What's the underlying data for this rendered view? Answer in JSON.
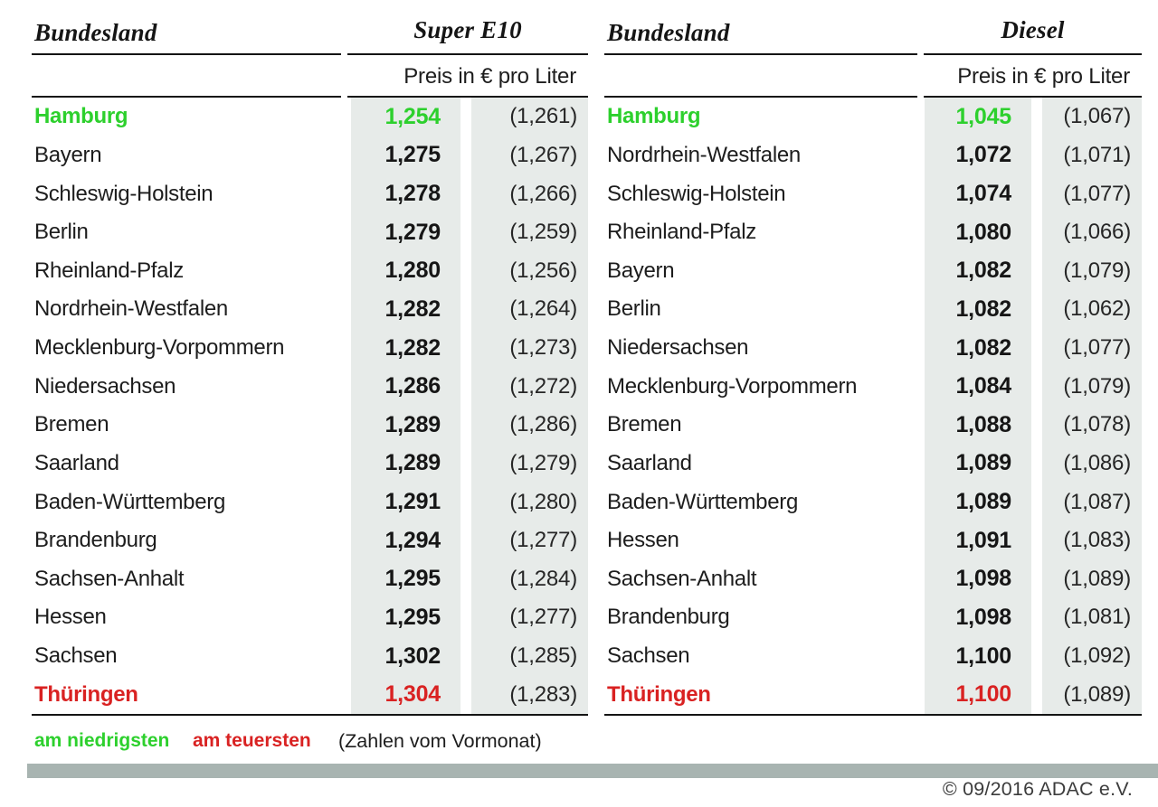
{
  "chart_data": [
    {
      "type": "table",
      "title": "Super E10",
      "header": {
        "state_label": "Bundesland",
        "fuel_label": "Super E10",
        "price_unit_label": "Preis in € pro Liter"
      },
      "columns": [
        "Bundesland",
        "Preis in € pro Liter",
        "Vormonat"
      ],
      "rows": [
        {
          "state": "Hamburg",
          "price": "1,254",
          "prev": "(1,261)",
          "highlight": "lowest"
        },
        {
          "state": "Bayern",
          "price": "1,275",
          "prev": "(1,267)",
          "highlight": ""
        },
        {
          "state": "Schleswig-Holstein",
          "price": "1,278",
          "prev": "(1,266)",
          "highlight": ""
        },
        {
          "state": "Berlin",
          "price": "1,279",
          "prev": "(1,259)",
          "highlight": ""
        },
        {
          "state": "Rheinland-Pfalz",
          "price": "1,280",
          "prev": "(1,256)",
          "highlight": ""
        },
        {
          "state": "Nordrhein-Westfalen",
          "price": "1,282",
          "prev": "(1,264)",
          "highlight": ""
        },
        {
          "state": "Mecklenburg-Vorpommern",
          "price": "1,282",
          "prev": "(1,273)",
          "highlight": ""
        },
        {
          "state": "Niedersachsen",
          "price": "1,286",
          "prev": "(1,272)",
          "highlight": ""
        },
        {
          "state": "Bremen",
          "price": "1,289",
          "prev": "(1,286)",
          "highlight": ""
        },
        {
          "state": "Saarland",
          "price": "1,289",
          "prev": "(1,279)",
          "highlight": ""
        },
        {
          "state": "Baden-Württemberg",
          "price": "1,291",
          "prev": "(1,280)",
          "highlight": ""
        },
        {
          "state": "Brandenburg",
          "price": "1,294",
          "prev": "(1,277)",
          "highlight": ""
        },
        {
          "state": "Sachsen-Anhalt",
          "price": "1,295",
          "prev": "(1,284)",
          "highlight": ""
        },
        {
          "state": "Hessen",
          "price": "1,295",
          "prev": "(1,277)",
          "highlight": ""
        },
        {
          "state": "Sachsen",
          "price": "1,302",
          "prev": "(1,285)",
          "highlight": ""
        },
        {
          "state": "Thüringen",
          "price": "1,304",
          "prev": "(1,283)",
          "highlight": "highest"
        }
      ]
    },
    {
      "type": "table",
      "title": "Diesel",
      "header": {
        "state_label": "Bundesland",
        "fuel_label": "Diesel",
        "price_unit_label": "Preis in € pro Liter"
      },
      "columns": [
        "Bundesland",
        "Preis in € pro Liter",
        "Vormonat"
      ],
      "rows": [
        {
          "state": "Hamburg",
          "price": "1,045",
          "prev": "(1,067)",
          "highlight": "lowest"
        },
        {
          "state": "Nordrhein-Westfalen",
          "price": "1,072",
          "prev": "(1,071)",
          "highlight": ""
        },
        {
          "state": "Schleswig-Holstein",
          "price": "1,074",
          "prev": "(1,077)",
          "highlight": ""
        },
        {
          "state": "Rheinland-Pfalz",
          "price": "1,080",
          "prev": "(1,066)",
          "highlight": ""
        },
        {
          "state": "Bayern",
          "price": "1,082",
          "prev": "(1,079)",
          "highlight": ""
        },
        {
          "state": "Berlin",
          "price": "1,082",
          "prev": "(1,062)",
          "highlight": ""
        },
        {
          "state": "Niedersachsen",
          "price": "1,082",
          "prev": "(1,077)",
          "highlight": ""
        },
        {
          "state": "Mecklenburg-Vorpommern",
          "price": "1,084",
          "prev": "(1,079)",
          "highlight": ""
        },
        {
          "state": "Bremen",
          "price": "1,088",
          "prev": "(1,078)",
          "highlight": ""
        },
        {
          "state": "Saarland",
          "price": "1,089",
          "prev": "(1,086)",
          "highlight": ""
        },
        {
          "state": "Baden-Württemberg",
          "price": "1,089",
          "prev": "(1,087)",
          "highlight": ""
        },
        {
          "state": "Hessen",
          "price": "1,091",
          "prev": "(1,083)",
          "highlight": ""
        },
        {
          "state": "Sachsen-Anhalt",
          "price": "1,098",
          "prev": "(1,089)",
          "highlight": ""
        },
        {
          "state": "Brandenburg",
          "price": "1,098",
          "prev": "(1,081)",
          "highlight": ""
        },
        {
          "state": "Sachsen",
          "price": "1,100",
          "prev": "(1,092)",
          "highlight": ""
        },
        {
          "state": "Thüringen",
          "price": "1,100",
          "prev": "(1,089)",
          "highlight": "highest"
        }
      ]
    }
  ],
  "legend": {
    "lowest": "am niedrigsten",
    "highest": "am teuersten",
    "note": "(Zahlen vom Vormonat)"
  },
  "footer": {
    "copyright": "© 09/2016 ADAC e.V."
  },
  "colors": {
    "lowest": "#2dd02d",
    "highest": "#d92222",
    "column_bg": "#e7ebe9",
    "divider_bar": "#a8b4b1"
  }
}
